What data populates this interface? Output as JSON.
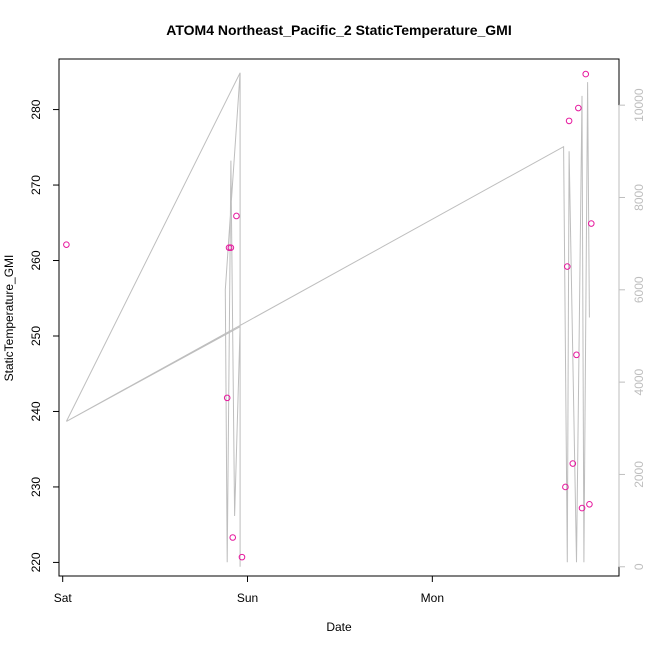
{
  "chart_data": {
    "type": "scatter",
    "title": "ATOM4 Northeast_Pacific_2 StaticTemperature_GMI",
    "xlabel": "Date",
    "ylabel": "StaticTemperature_GMI",
    "x_axis": {
      "unit": "days since Sat 00:00",
      "range": [
        -0.02,
        3.01
      ],
      "ticks": [
        {
          "value": 0,
          "label": "Sat"
        },
        {
          "value": 1,
          "label": "Sun"
        },
        {
          "value": 2,
          "label": "Mon"
        }
      ]
    },
    "y_axis_left": {
      "range": [
        218.2,
        286.7
      ],
      "ticks": [
        220,
        230,
        240,
        250,
        260,
        270,
        280
      ]
    },
    "y_axis_right": {
      "range": [
        -200,
        11000
      ],
      "ticks": [
        0,
        2000,
        4000,
        6000,
        8000,
        10000
      ],
      "color": "#bebebe"
    },
    "series": [
      {
        "kind": "points",
        "axis": "left",
        "color": "#e6199e",
        "points": [
          {
            "x": 0.02,
            "y": 262.1
          },
          {
            "x": 0.89,
            "y": 241.8
          },
          {
            "x": 0.9,
            "y": 261.7
          },
          {
            "x": 0.91,
            "y": 261.7
          },
          {
            "x": 0.92,
            "y": 223.3
          },
          {
            "x": 0.94,
            "y": 265.9
          },
          {
            "x": 0.97,
            "y": 220.7
          },
          {
            "x": 2.72,
            "y": 230.0
          },
          {
            "x": 2.73,
            "y": 259.2
          },
          {
            "x": 2.74,
            "y": 278.5
          },
          {
            "x": 2.76,
            "y": 233.1
          },
          {
            "x": 2.78,
            "y": 247.5
          },
          {
            "x": 2.79,
            "y": 280.2
          },
          {
            "x": 2.81,
            "y": 227.2
          },
          {
            "x": 2.83,
            "y": 284.7
          },
          {
            "x": 2.85,
            "y": 227.7
          },
          {
            "x": 2.86,
            "y": 264.9
          }
        ]
      },
      {
        "kind": "line",
        "axis": "right",
        "color": "#bebebe",
        "points": [
          {
            "x": 0.02,
            "y": 3150
          },
          {
            "x": 0.96,
            "y": 10700
          },
          {
            "x": 0.96,
            "y": 0
          },
          {
            "x": 0.96,
            "y": 10700
          },
          {
            "x": 0.88,
            "y": 6000
          },
          {
            "x": 0.89,
            "y": 100
          },
          {
            "x": 0.91,
            "y": 8800
          },
          {
            "x": 0.93,
            "y": 1100
          },
          {
            "x": 0.96,
            "y": 5200
          },
          {
            "x": 0.02,
            "y": 3150
          },
          {
            "x": 2.71,
            "y": 9100
          },
          {
            "x": 2.73,
            "y": 100
          },
          {
            "x": 2.74,
            "y": 9000
          },
          {
            "x": 2.78,
            "y": 100
          },
          {
            "x": 2.81,
            "y": 10200
          },
          {
            "x": 2.82,
            "y": 100
          },
          {
            "x": 2.84,
            "y": 10500
          },
          {
            "x": 2.85,
            "y": 5400
          }
        ]
      }
    ]
  }
}
